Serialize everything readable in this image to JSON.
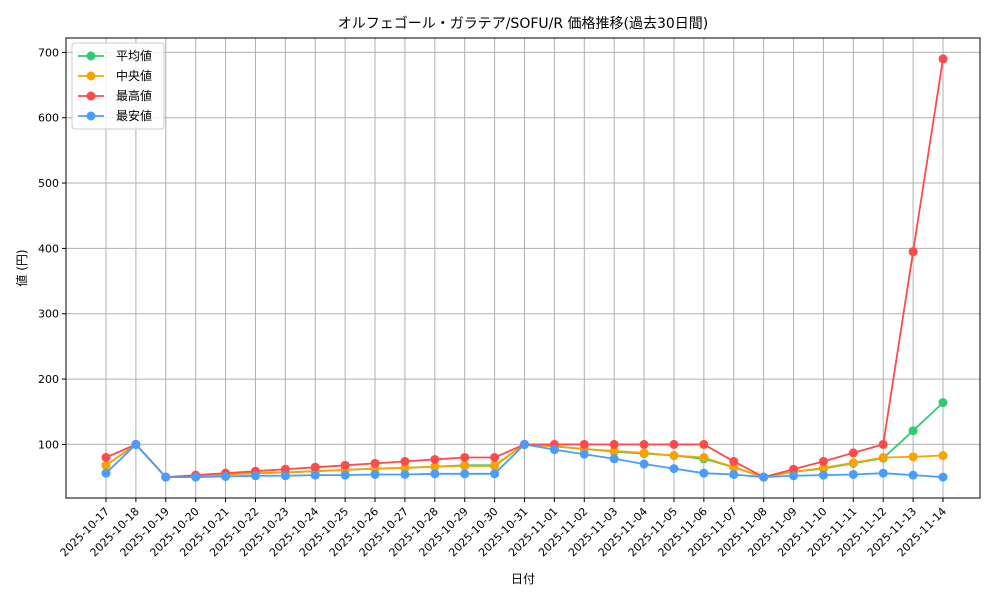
{
  "chart_data": {
    "type": "line",
    "title": "オルフェゴール・ガラテア/SOFU/R 価格推移(過去30日間)",
    "xlabel": "日付",
    "ylabel": "値 (円)",
    "ylim": [
      18,
      722
    ],
    "yticks": [
      100,
      200,
      300,
      400,
      500,
      600,
      700
    ],
    "grid": true,
    "legend_position": "top-left",
    "x": [
      "2025-10-17",
      "2025-10-18",
      "2025-10-19",
      "2025-10-20",
      "2025-10-21",
      "2025-10-22",
      "2025-10-23",
      "2025-10-24",
      "2025-10-25",
      "2025-10-26",
      "2025-10-27",
      "2025-10-28",
      "2025-10-29",
      "2025-10-30",
      "2025-10-31",
      "2025-11-01",
      "2025-11-02",
      "2025-11-03",
      "2025-11-04",
      "2025-11-05",
      "2025-11-06",
      "2025-11-07",
      "2025-11-08",
      "2025-11-09",
      "2025-11-10",
      "2025-11-11",
      "2025-11-12",
      "2025-11-13",
      "2025-11-14"
    ],
    "series": [
      {
        "name": "平均値",
        "color": "#2ecc71",
        "values": [
          68,
          100,
          50,
          51,
          54,
          56,
          57,
          59,
          61,
          63,
          64,
          66,
          68,
          68,
          100,
          97,
          93,
          89,
          86,
          83,
          78,
          65,
          50,
          58,
          63,
          71,
          79,
          121,
          164
        ]
      },
      {
        "name": "中央値",
        "color": "#f8a300",
        "values": [
          68,
          100,
          50,
          51,
          54,
          56,
          57,
          59,
          61,
          63,
          64,
          66,
          67,
          67,
          100,
          97,
          93,
          90,
          87,
          83,
          80,
          65,
          50,
          58,
          64,
          72,
          80,
          81,
          83
        ]
      },
      {
        "name": "最高値",
        "color": "#ff4a4a",
        "values": [
          80,
          100,
          50,
          53,
          56,
          59,
          62,
          65,
          68,
          71,
          74,
          77,
          80,
          80,
          100,
          100,
          100,
          100,
          100,
          100,
          100,
          74,
          50,
          62,
          74,
          87,
          100,
          395,
          690
        ]
      },
      {
        "name": "最安値",
        "color": "#4a9dff",
        "values": [
          56,
          100,
          50,
          50,
          51,
          52,
          52,
          53,
          53,
          54,
          54,
          55,
          55,
          55,
          100,
          92,
          85,
          78,
          70,
          63,
          56,
          54,
          50,
          52,
          53,
          54,
          56,
          53,
          50
        ]
      }
    ]
  }
}
